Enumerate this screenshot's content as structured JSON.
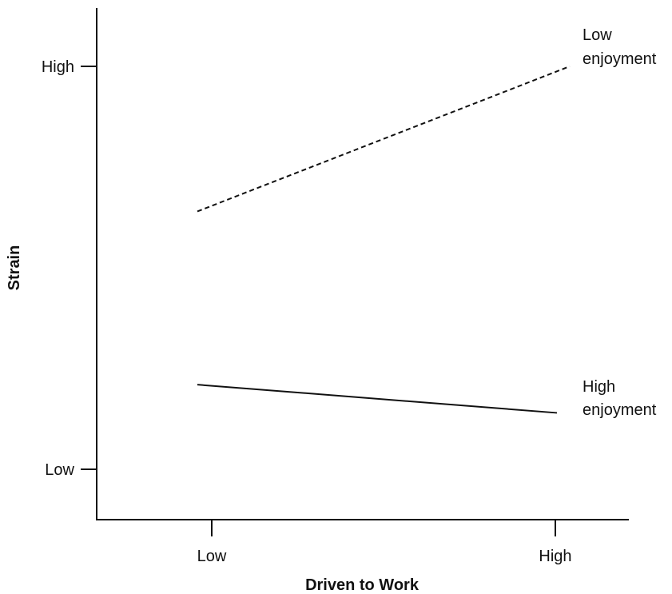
{
  "chart_data": {
    "type": "line",
    "xlabel": "Driven to Work",
    "ylabel": "Strain",
    "x_categories": [
      "Low",
      "High"
    ],
    "y_tick_labels": [
      "High",
      "Low"
    ],
    "series": [
      {
        "name": "Low enjoyment",
        "label_lines": [
          "Low",
          "enjoyment"
        ],
        "style": "dashed",
        "values": [
          0.64,
          1.0
        ]
      },
      {
        "name": "High enjoyment",
        "label_lines": [
          "High",
          "enjoyment"
        ],
        "style": "solid",
        "values": [
          0.21,
          0.14
        ]
      }
    ],
    "ylim": [
      0,
      1
    ],
    "grid": false,
    "colors": {
      "line": "#111111",
      "axis": "#111111"
    }
  }
}
